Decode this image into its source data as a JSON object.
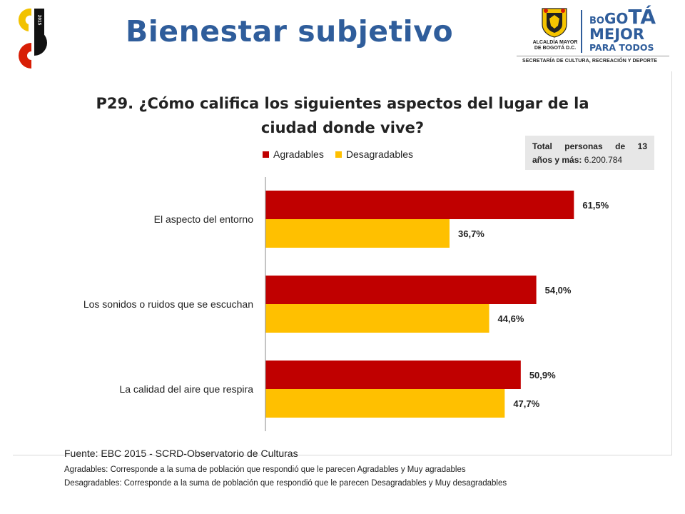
{
  "header": {
    "title": "Bienestar subjetivo"
  },
  "left_logo": {
    "icon": "sb-logo-icon",
    "year_digits": "2015",
    "colors": [
      "#f2c200",
      "#d81e05",
      "#111111"
    ]
  },
  "right_logo": {
    "seal_icon": "bogota-coat-of-arms-icon",
    "seal_text_line1": "ALCALDÍA MAYOR",
    "seal_text_line2": "DE BOGOTÁ D.C.",
    "brand_bo": "BO",
    "brand_go": "GO",
    "brand_ta": "TÁ",
    "brand_line2": "MEJOR",
    "brand_line3": "PARA TODOS",
    "secretariat": "SECRETARÍA DE CULTURA, RECREACIÓN Y DEPORTE"
  },
  "total_box": {
    "label": "Total personas de 13",
    "label2": "años y más:",
    "value": "6.200.784"
  },
  "chart_data": {
    "type": "bar",
    "orientation": "horizontal",
    "title_line1": "P29. ¿Cómo califica los siguientes aspectos del lugar de la",
    "title_line2": "ciudad donde vive?",
    "categories": [
      "El aspecto del entorno",
      "Los sonidos o ruidos que se escuchan",
      "La calidad del aire que respira"
    ],
    "series": [
      {
        "name": "Agradables",
        "color": "#c00000",
        "values": [
          61.5,
          54.0,
          50.9
        ],
        "labels": [
          "61,5%",
          "54,0%",
          "50,9%"
        ]
      },
      {
        "name": "Desagradables",
        "color": "#ffc000",
        "values": [
          36.7,
          44.6,
          47.7
        ],
        "labels": [
          "36,7%",
          "44,6%",
          "47,7%"
        ]
      }
    ],
    "xlim": [
      0,
      100
    ],
    "grid": false,
    "legend_position": "top"
  },
  "footer": {
    "source": "Fuente: EBC 2015 - SCRD-Observatorio de Culturas",
    "note1": "Agradables: Corresponde a la suma de población que respondió que le parecen Agradables y Muy agradables",
    "note2": "Desagradables: Corresponde a la suma de población que respondió que le parecen Desagradables y Muy desagradables"
  }
}
